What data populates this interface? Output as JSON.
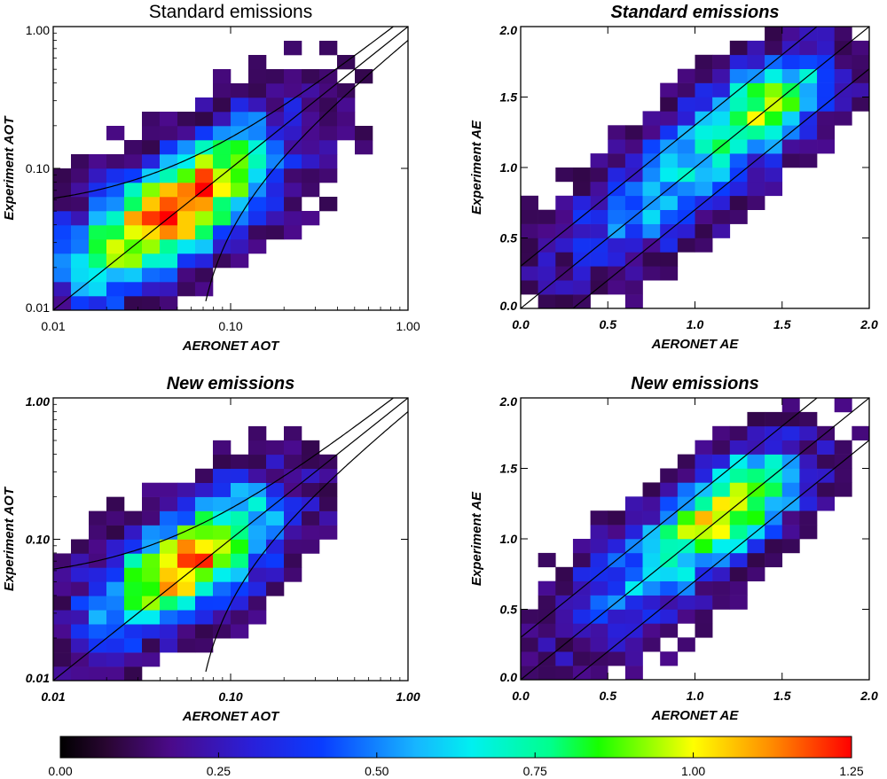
{
  "chart_data": [
    {
      "type": "heatmap",
      "title": "Standard emissions",
      "title_style": "plain",
      "xlabel": "AERONET AOT",
      "ylabel": "Experiment AOT",
      "scale": "log",
      "xlim": [
        0.01,
        1.0
      ],
      "ylim": [
        0.01,
        1.0
      ],
      "xticks": [
        "0.01",
        "0.10",
        "1.00"
      ],
      "yticks": [
        "0.01",
        "0.10",
        "1.00"
      ],
      "tick_style": "plain",
      "grid": false,
      "reference_lines": "1:1 line with error envelope curves",
      "note": "2D density of points, color scale 0.00-1.25"
    },
    {
      "type": "heatmap",
      "title": "Standard emissions",
      "title_style": "bold-italic",
      "xlabel": "AERONET AE",
      "ylabel": "Experiment AE",
      "scale": "linear",
      "xlim": [
        0.0,
        2.0
      ],
      "ylim": [
        0.0,
        2.0
      ],
      "xticks": [
        "0.0",
        "0.5",
        "1.0",
        "1.5",
        "2.0"
      ],
      "yticks": [
        "0.0",
        "0.5",
        "1.0",
        "1.5",
        "2.0"
      ],
      "tick_style": "bold-italic",
      "grid": false,
      "reference_lines": "1:1 line with +/-0.3 parallels"
    },
    {
      "type": "heatmap",
      "title": "New emissions",
      "title_style": "bold-italic",
      "xlabel": "AERONET AOT",
      "ylabel": "Experiment AOT",
      "scale": "log",
      "xlim": [
        0.01,
        1.0
      ],
      "ylim": [
        0.01,
        1.0
      ],
      "xticks": [
        "0.01",
        "0.10",
        "1.00"
      ],
      "yticks": [
        "0.01",
        "0.10",
        "1.00"
      ],
      "tick_style": "bold-italic",
      "grid": false,
      "reference_lines": "1:1 line with error envelope curves"
    },
    {
      "type": "heatmap",
      "title": "New emissions",
      "title_style": "bold-italic",
      "xlabel": "AERONET AE",
      "ylabel": "Experiment AE",
      "scale": "linear",
      "xlim": [
        0.0,
        2.0
      ],
      "ylim": [
        0.0,
        2.0
      ],
      "xticks": [
        "0.0",
        "0.5",
        "1.0",
        "1.5",
        "2.0"
      ],
      "yticks": [
        "0.0",
        "0.5",
        "1.0",
        "1.5",
        "2.0"
      ],
      "tick_style": "bold-italic",
      "grid": false,
      "reference_lines": "1:1 line with +/-0.3 parallels"
    }
  ],
  "colorbar": {
    "ticks": [
      "0.00",
      "0.25",
      "0.50",
      "0.75",
      "1.00",
      "1.25"
    ],
    "min": 0.0,
    "max": 1.25,
    "colormap": "rainbow (black-purple-blue-cyan-green-yellow-red)"
  }
}
